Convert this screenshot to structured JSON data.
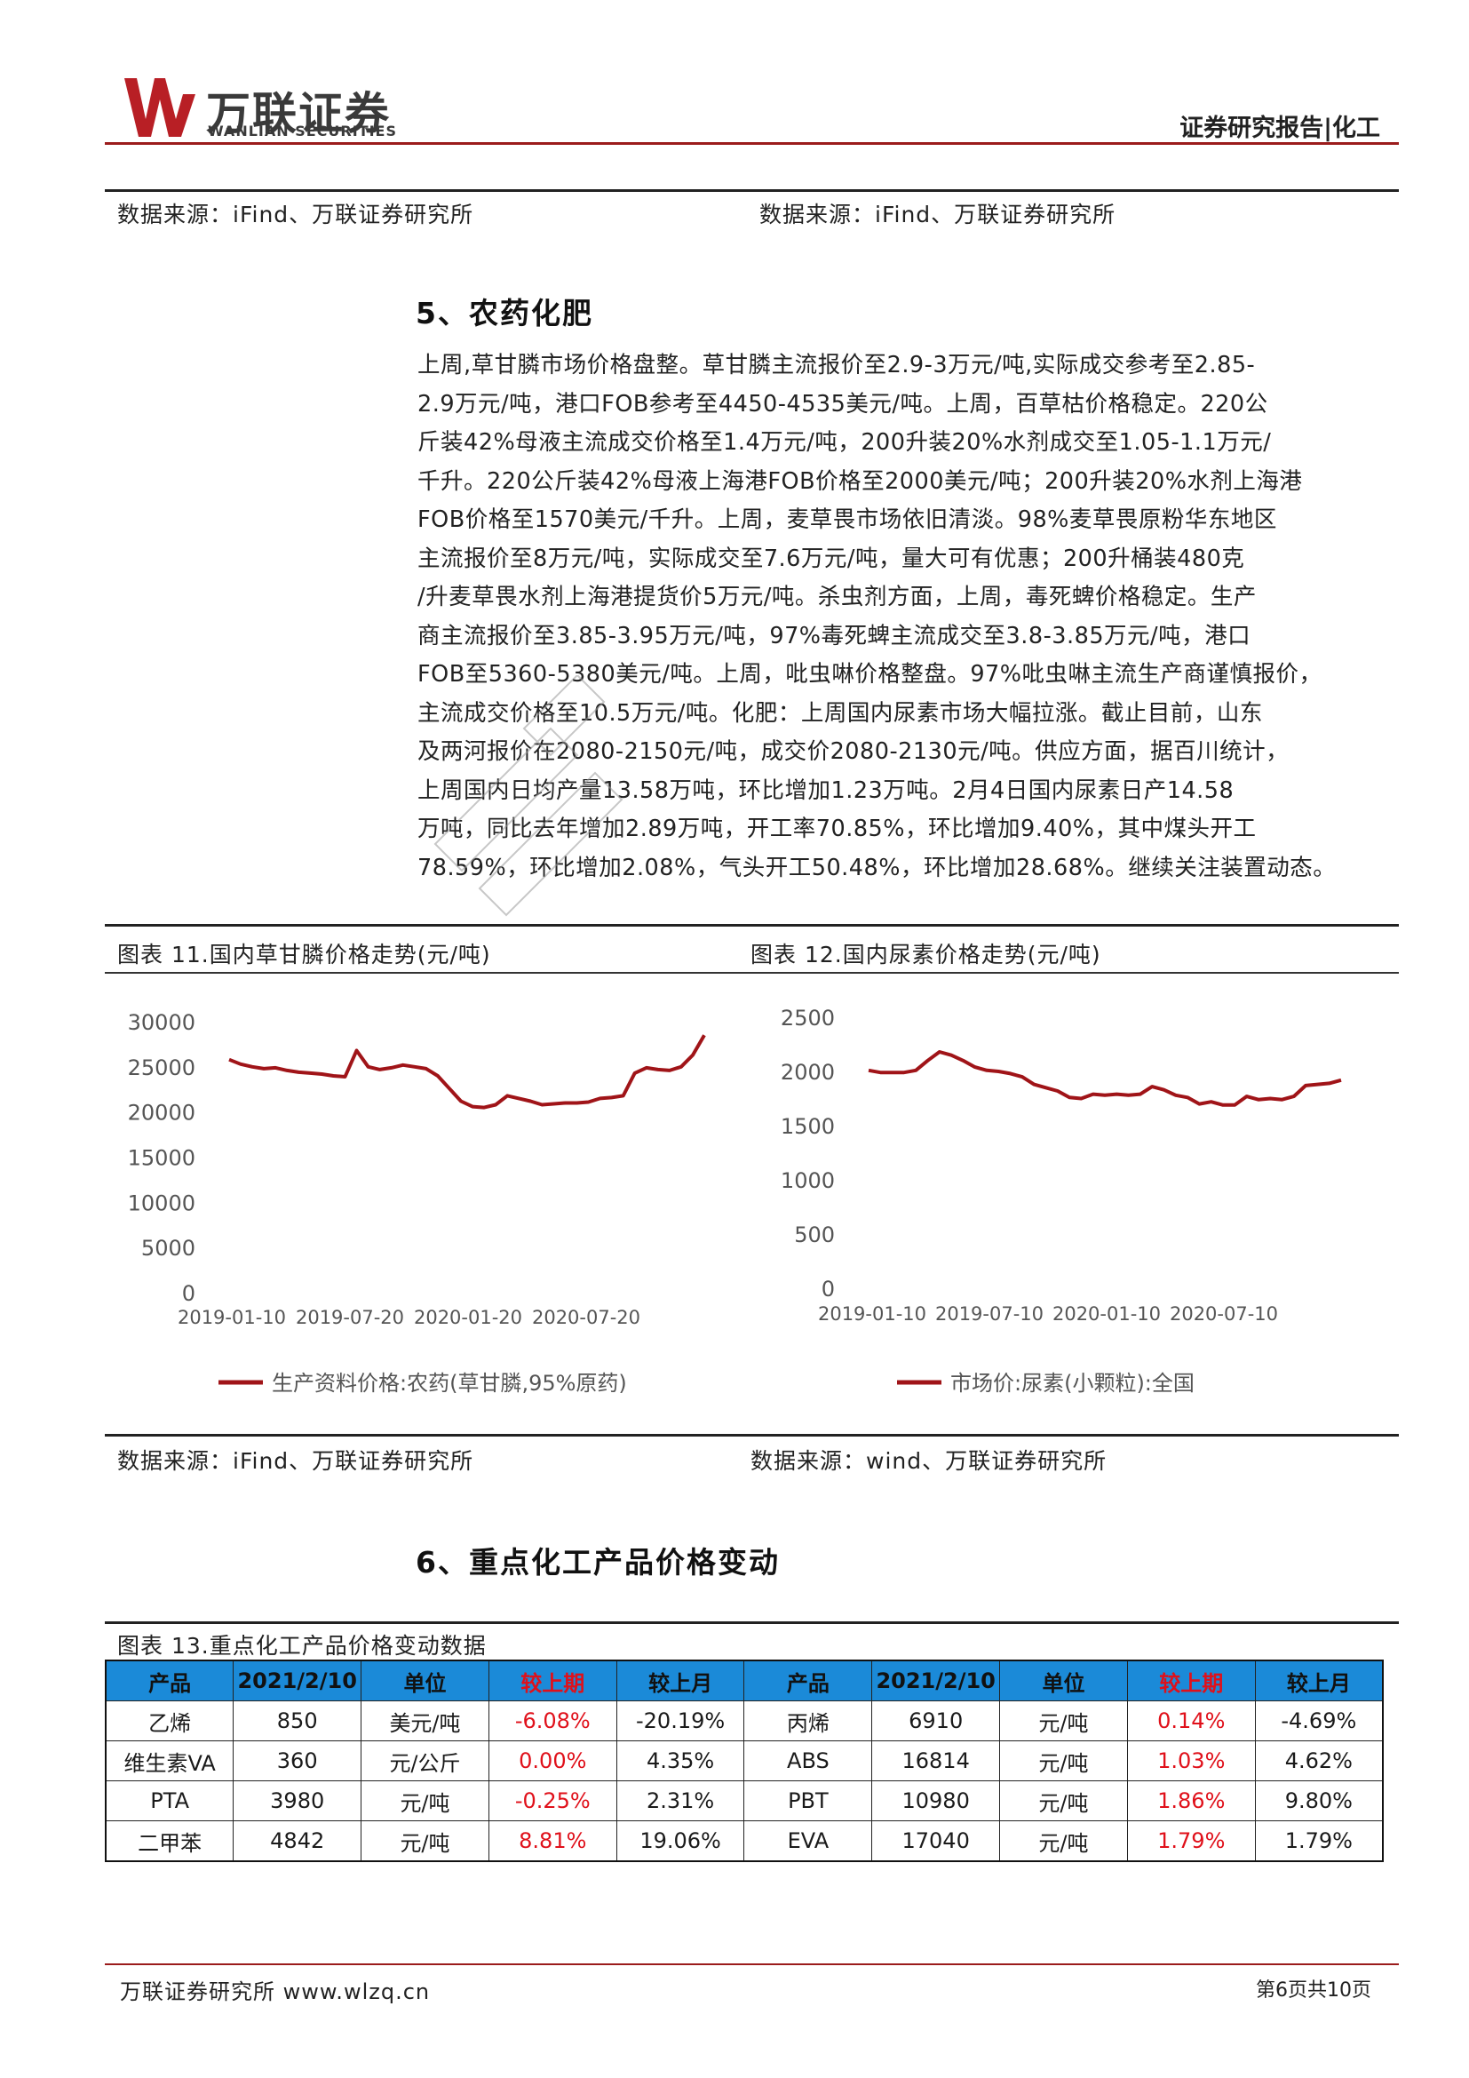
{
  "header": {
    "logo_cn": "万联证券",
    "logo_en": "WANLIAN SECURITIES",
    "report_type": "证券研究报告|化工"
  },
  "top_sources": {
    "left": "数据来源：iFind、万联证券研究所",
    "right": "数据来源：iFind、万联证券研究所"
  },
  "section5": {
    "title": "5、农药化肥",
    "lines": [
      "上周,草甘膦市场价格盘整。草甘膦主流报价至2.9-3万元/吨,实际成交参考至2.85-",
      "2.9万元/吨，港口FOB参考至4450-4535美元/吨。上周，百草枯价格稳定。220公",
      "斤装42%母液主流成交价格至1.4万元/吨，200升装20%水剂成交至1.05-1.1万元/",
      "千升。220公斤装42%母液上海港FOB价格至2000美元/吨；200升装20%水剂上海港",
      "FOB价格至1570美元/千升。上周，麦草畏市场依旧清淡。98%麦草畏原粉华东地区",
      "主流报价至8万元/吨，实际成交至7.6万元/吨，量大可有优惠；200升桶装480克",
      "/升麦草畏水剂上海港提货价5万元/吨。杀虫剂方面，上周，毒死蜱价格稳定。生产",
      "商主流报价至3.85-3.95万元/吨，97%毒死蜱主流成交至3.8-3.85万元/吨，港口",
      "FOB至5360-5380美元/吨。上周，吡虫啉价格整盘。97%吡虫啉主流生产商谨慎报价，",
      "主流成交价格至10.5万元/吨。化肥：上周国内尿素市场大幅拉涨。截止目前，山东",
      "及两河报价在2080-2150元/吨，成交价2080-2130元/吨。供应方面，据百川统计，",
      "上周国内日均产量13.58万吨，环比增加1.23万吨。2月4日国内尿素日产14.58",
      "万吨，同比去年增加2.89万吨，开工率70.85%，环比增加9.40%，其中煤头开工",
      "78.59%，环比增加2.08%，气头开工50.48%，环比增加28.68%。继续关注装置动态。"
    ]
  },
  "figures": {
    "fig11_caption": "图表 11.国内草甘膦价格走势(元/吨)",
    "fig12_caption": "图表 12.国内尿素价格走势(元/吨)",
    "fig11_source": "数据来源：iFind、万联证券研究所",
    "fig12_source": "数据来源：wind、万联证券研究所"
  },
  "chart_data": [
    {
      "type": "line",
      "title": "",
      "x_tick_labels": [
        "2019-01-10",
        "2019-07-20",
        "2020-01-20",
        "2020-07-20"
      ],
      "y_ticks": [
        0,
        5000,
        10000,
        15000,
        20000,
        25000,
        30000
      ],
      "ylim": [
        0,
        30000
      ],
      "legend_position": "bottom",
      "color": "#a01418",
      "series": [
        {
          "name": "生产资料价格:农药(草甘膦,95%原药)",
          "values": [
            25800,
            25300,
            25000,
            24800,
            24900,
            24600,
            24400,
            24300,
            24200,
            24000,
            23900,
            26800,
            25000,
            24700,
            24900,
            25200,
            25000,
            24800,
            24000,
            22600,
            21200,
            20600,
            20500,
            20800,
            21800,
            21500,
            21200,
            20800,
            20900,
            21000,
            21000,
            21100,
            21500,
            21600,
            21800,
            24300,
            24900,
            24700,
            24600,
            25000,
            26300,
            28500
          ]
        }
      ]
    },
    {
      "type": "line",
      "title": "",
      "x_tick_labels": [
        "2019-01-10",
        "2019-07-10",
        "2020-01-10",
        "2020-07-10"
      ],
      "y_ticks": [
        0,
        500,
        1000,
        1500,
        2000,
        2500
      ],
      "ylim": [
        0,
        2500
      ],
      "legend_position": "bottom",
      "color": "#a01418",
      "series": [
        {
          "name": "市场价:尿素(小颗粒):全国",
          "values": [
            2010,
            1990,
            1990,
            1990,
            2010,
            2100,
            2180,
            2150,
            2100,
            2040,
            2010,
            2000,
            1980,
            1950,
            1880,
            1850,
            1820,
            1760,
            1750,
            1790,
            1780,
            1790,
            1780,
            1790,
            1860,
            1830,
            1780,
            1760,
            1700,
            1720,
            1690,
            1690,
            1770,
            1740,
            1750,
            1740,
            1770,
            1870,
            1880,
            1890,
            1920
          ]
        }
      ]
    }
  ],
  "section6": {
    "title": "6、重点化工产品价格变动",
    "table_caption": "图表 13.重点化工产品价格变动数据",
    "headers": [
      "产品",
      "2021/2/10",
      "单位",
      "较上期",
      "较上月",
      "产品",
      "2021/2/10",
      "单位",
      "较上期",
      "较上月"
    ],
    "rows": [
      [
        "乙烯",
        "850",
        "美元/吨",
        "-6.08%",
        "-20.19%",
        "丙烯",
        "6910",
        "元/吨",
        "0.14%",
        "-4.69%"
      ],
      [
        "维生素VA",
        "360",
        "元/公斤",
        "0.00%",
        "4.35%",
        "ABS",
        "16814",
        "元/吨",
        "1.03%",
        "4.62%"
      ],
      [
        "PTA",
        "3980",
        "元/吨",
        "-0.25%",
        "2.31%",
        "PBT",
        "10980",
        "元/吨",
        "1.86%",
        "9.80%"
      ],
      [
        "二甲苯",
        "4842",
        "元/吨",
        "8.81%",
        "19.06%",
        "EVA",
        "17040",
        "元/吨",
        "1.79%",
        "1.79%"
      ]
    ]
  },
  "footer": {
    "left": "万联证券研究所 www.wlzq.cn",
    "right": "第6页共10页"
  }
}
